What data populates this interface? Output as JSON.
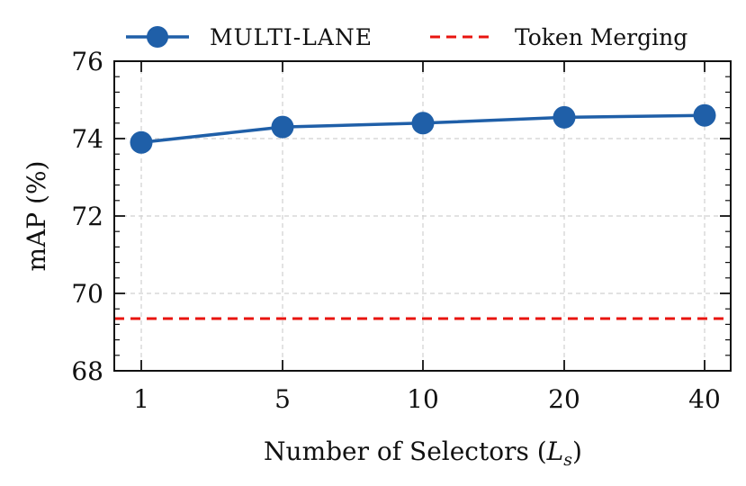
{
  "chart_data": {
    "type": "line",
    "categories": [
      "1",
      "5",
      "10",
      "20",
      "40"
    ],
    "series": [
      {
        "name": "MULTI-LANE",
        "values": [
          73.9,
          74.3,
          74.4,
          74.55,
          74.6
        ],
        "color": "#1f5fa8"
      }
    ],
    "reference_lines": [
      {
        "name": "Token Merging",
        "value": 69.35,
        "color": "#e8140f",
        "style": "dashed"
      }
    ],
    "title": "",
    "xlabel_text": "Number of Selectors (",
    "xlabel_var": "L",
    "xlabel_sub": "s",
    "xlabel_close": ")",
    "ylabel": "mAP (%)",
    "ylim": [
      68,
      76
    ],
    "yticks": [
      68,
      70,
      72,
      74,
      76
    ],
    "grid": true,
    "legend_placement": "top"
  }
}
